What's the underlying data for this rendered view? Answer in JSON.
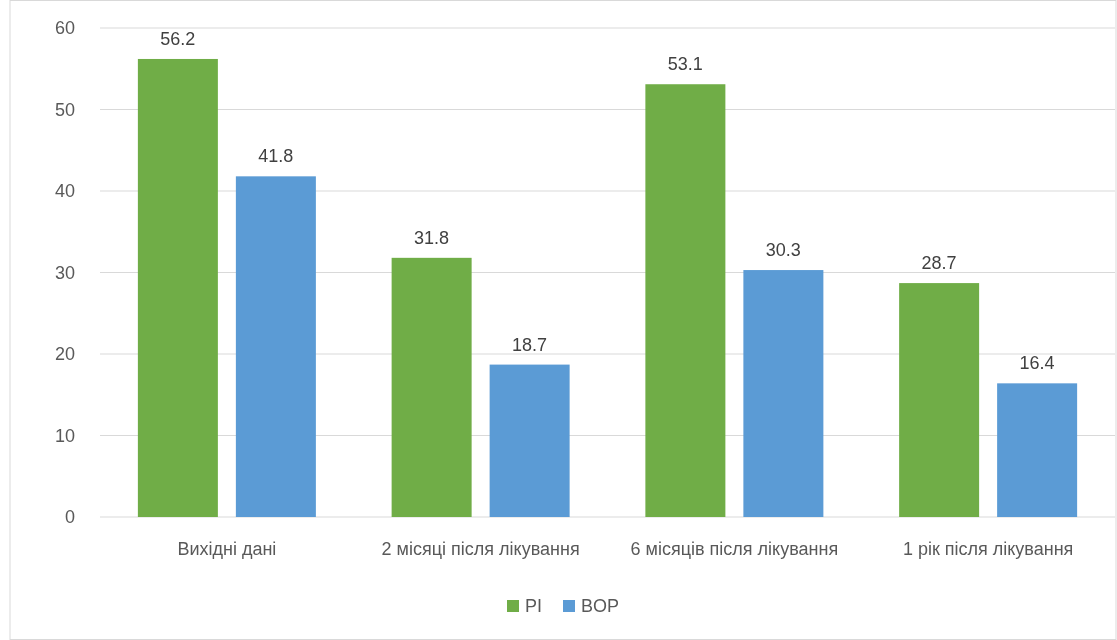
{
  "chart_data": {
    "type": "bar",
    "categories": [
      "Вихідні дані",
      "2 місяці після лікування",
      "6 місяців після лікування",
      "1 рік після лікування"
    ],
    "series": [
      {
        "name": "PI",
        "color": "#70ad47",
        "values": [
          56.2,
          31.8,
          53.1,
          28.7
        ]
      },
      {
        "name": "BOP",
        "color": "#5b9bd5",
        "values": [
          41.8,
          18.7,
          30.3,
          16.4
        ]
      }
    ],
    "ylim": [
      0,
      60
    ],
    "yticks": [
      0,
      10,
      20,
      30,
      40,
      50,
      60
    ],
    "grid": "y",
    "legend": "bottom",
    "data_labels": true
  }
}
